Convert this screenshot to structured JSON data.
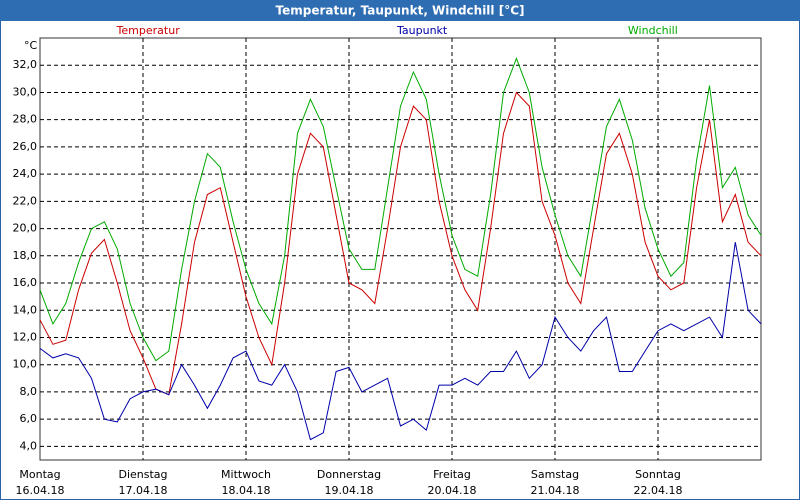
{
  "chart_data": {
    "type": "line",
    "title": "Temperatur, Taupunkt, Windchill [°C]",
    "y_unit": "°C",
    "xlim": [
      0,
      7
    ],
    "xticks": [
      {
        "value": 0,
        "label": "Montag",
        "date": "16.04.18"
      },
      {
        "value": 1,
        "label": "Dienstag",
        "date": "17.04.18"
      },
      {
        "value": 2,
        "label": "Mittwoch",
        "date": "18.04.18"
      },
      {
        "value": 3,
        "label": "Donnerstag",
        "date": "19.04.18"
      },
      {
        "value": 4,
        "label": "Freitag",
        "date": "20.04.18"
      },
      {
        "value": 5,
        "label": "Samstag",
        "date": "21.04.18"
      },
      {
        "value": 6,
        "label": "Sonntag",
        "date": "22.04.18"
      }
    ],
    "ylim": [
      3,
      34
    ],
    "yticks": [
      {
        "value": 4,
        "label": "4,0"
      },
      {
        "value": 6,
        "label": "6,0"
      },
      {
        "value": 8,
        "label": "8,0"
      },
      {
        "value": 10,
        "label": "10,0"
      },
      {
        "value": 12,
        "label": "12,0"
      },
      {
        "value": 14,
        "label": "14,0"
      },
      {
        "value": 16,
        "label": "16,0"
      },
      {
        "value": 18,
        "label": "18,0"
      },
      {
        "value": 20,
        "label": "20,0"
      },
      {
        "value": 22,
        "label": "22,0"
      },
      {
        "value": 24,
        "label": "24,0"
      },
      {
        "value": 26,
        "label": "26,0"
      },
      {
        "value": 28,
        "label": "28,0"
      },
      {
        "value": 30,
        "label": "30,0"
      },
      {
        "value": 32,
        "label": "32,0"
      }
    ],
    "grid": true,
    "x": [
      0,
      0.125,
      0.25,
      0.375,
      0.5,
      0.625,
      0.75,
      0.875,
      1,
      1.125,
      1.25,
      1.375,
      1.5,
      1.625,
      1.75,
      1.875,
      2,
      2.125,
      2.25,
      2.375,
      2.5,
      2.625,
      2.75,
      2.875,
      3,
      3.125,
      3.25,
      3.375,
      3.5,
      3.625,
      3.75,
      3.875,
      4,
      4.125,
      4.25,
      4.375,
      4.5,
      4.625,
      4.75,
      4.875,
      5,
      5.125,
      5.25,
      5.375,
      5.5,
      5.625,
      5.75,
      5.875,
      6,
      6.125,
      6.25,
      6.375,
      6.5,
      6.625,
      6.75,
      6.875,
      7
    ],
    "series": [
      {
        "name": "Temperatur",
        "color": "#cc0000",
        "legend_pos": 0.15,
        "values": [
          13.3,
          11.5,
          11.8,
          15.5,
          18.2,
          19.2,
          16,
          12.5,
          10.5,
          8.2,
          7.8,
          13,
          19,
          22.5,
          23,
          19,
          15,
          12,
          10,
          16,
          24,
          27,
          26,
          21,
          16,
          15.5,
          14.5,
          20,
          26,
          29,
          28,
          22,
          18,
          15.5,
          14,
          20,
          27,
          30,
          29,
          22,
          19.5,
          16,
          14.5,
          20,
          25.5,
          27,
          24,
          19,
          16.5,
          15.5,
          16,
          23,
          28,
          20.5,
          22.5,
          19,
          18
        ]
      },
      {
        "name": "Taupunkt",
        "color": "#0000aa",
        "legend_pos": 0.53,
        "values": [
          11.2,
          10.5,
          10.8,
          10.5,
          9,
          6,
          5.8,
          7.5,
          8,
          8.2,
          7.8,
          10,
          8.5,
          6.8,
          8.5,
          10.5,
          11,
          8.8,
          8.5,
          10,
          8,
          4.5,
          5,
          9.5,
          9.8,
          8,
          8.5,
          9,
          5.5,
          6,
          5.2,
          8.5,
          8.5,
          9,
          8.5,
          9.5,
          9.5,
          11,
          9,
          10,
          13.5,
          12,
          11,
          12.5,
          13.5,
          9.5,
          9.5,
          11,
          12.5,
          13,
          12.5,
          13,
          13.5,
          12,
          19,
          14,
          13
        ]
      },
      {
        "name": "Windchill",
        "color": "#00aa00",
        "legend_pos": 0.85,
        "values": [
          15.5,
          13,
          14.5,
          17.5,
          20,
          20.5,
          18.5,
          14.5,
          12,
          10.3,
          11,
          17,
          22,
          25.5,
          24.5,
          20.5,
          17,
          14.5,
          13,
          18,
          27,
          29.5,
          27.5,
          23,
          18.5,
          17,
          17,
          23,
          29,
          31.5,
          29.5,
          24,
          19.5,
          17,
          16.5,
          22.5,
          30,
          32.5,
          30,
          24.5,
          21,
          18,
          16.5,
          22,
          27.5,
          29.5,
          26.5,
          21.5,
          18.5,
          16.5,
          17.5,
          25,
          30.5,
          23,
          24.5,
          21,
          19.5
        ]
      }
    ]
  }
}
